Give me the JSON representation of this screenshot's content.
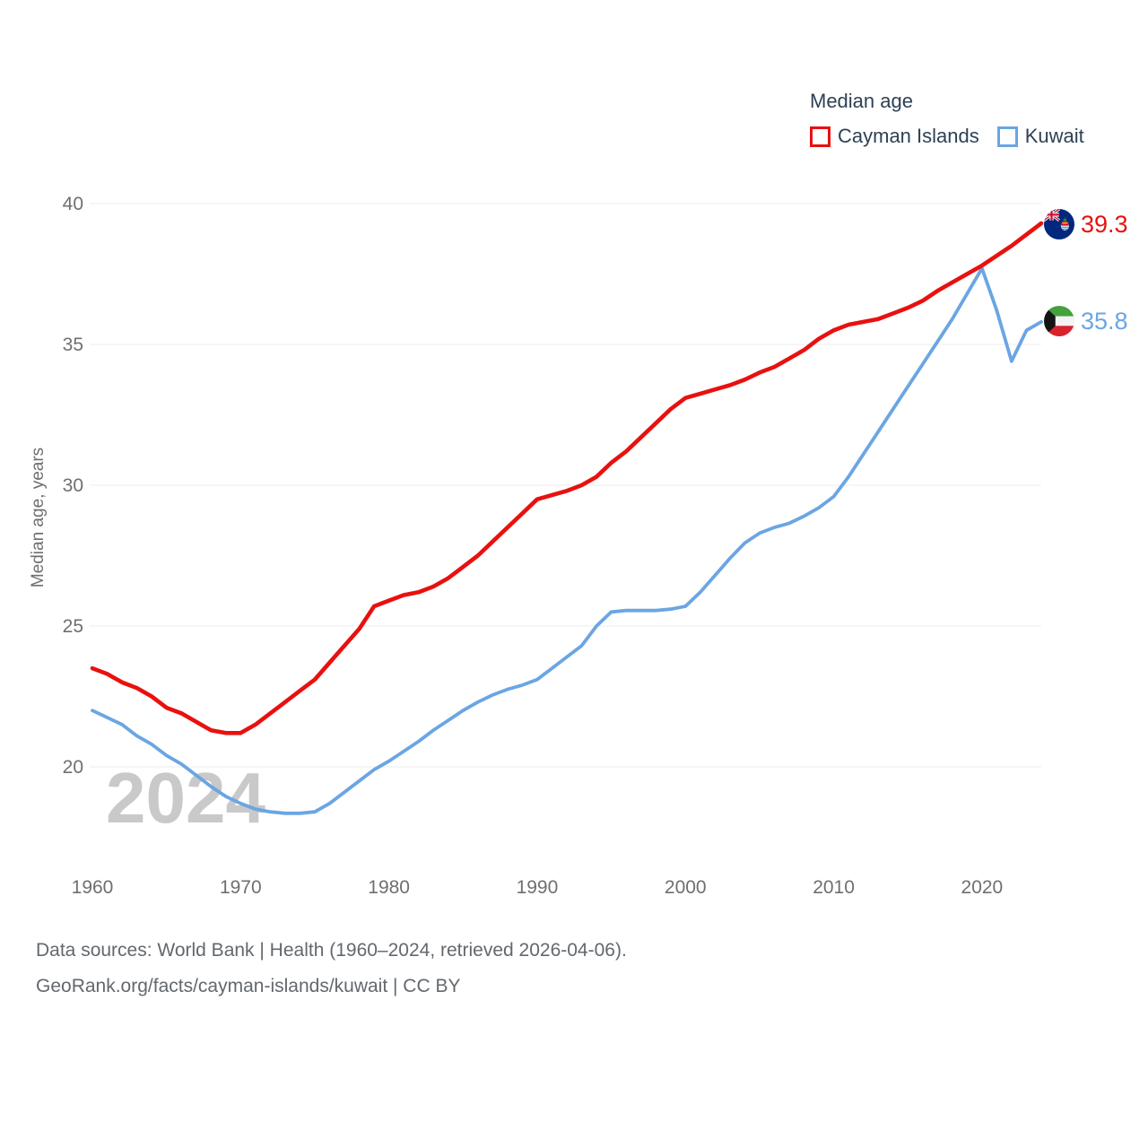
{
  "legend": {
    "title": "Median age"
  },
  "footer": {
    "line1": "Data sources: World Bank | Health (1960–2024, retrieved 2026-04-06).",
    "line2": "GeoRank.org/facts/cayman-islands/kuwait | CC BY"
  },
  "colors": {
    "background": "#ffffff",
    "legend_text": "#2e4154",
    "axis_text": "#6f6f6f",
    "footer_text": "#63686d",
    "gridline": "#ececec",
    "watermark": "#c9c9c9"
  },
  "chart_data": {
    "type": "line",
    "title": "Median age",
    "xlabel": "",
    "ylabel": "Median age, years",
    "watermark": "2024",
    "legend_position": "top-right",
    "grid": "horizontal-only",
    "x_range": [
      1960,
      2024
    ],
    "x_step": 1,
    "x_ticks": [
      1960,
      1970,
      1980,
      1990,
      2000,
      2010,
      2020
    ],
    "y_ticks": [
      20,
      25,
      30,
      35,
      40
    ],
    "ylim_drawn": [
      18.3,
      40
    ],
    "years": [
      1960,
      1961,
      1962,
      1963,
      1964,
      1965,
      1966,
      1967,
      1968,
      1969,
      1970,
      1971,
      1972,
      1973,
      1974,
      1975,
      1976,
      1977,
      1978,
      1979,
      1980,
      1981,
      1982,
      1983,
      1984,
      1985,
      1986,
      1987,
      1988,
      1989,
      1990,
      1991,
      1992,
      1993,
      1994,
      1995,
      1996,
      1997,
      1998,
      1999,
      2000,
      2001,
      2002,
      2003,
      2004,
      2005,
      2006,
      2007,
      2008,
      2009,
      2010,
      2011,
      2012,
      2013,
      2014,
      2015,
      2016,
      2017,
      2018,
      2019,
      2020,
      2021,
      2022,
      2023,
      2024
    ],
    "series": [
      {
        "name": "Cayman Islands",
        "color": "#e8110f",
        "end_label": "39.3",
        "flag": "cayman-islands",
        "values": [
          23.5,
          23.3,
          23.0,
          22.8,
          22.5,
          22.1,
          21.9,
          21.6,
          21.3,
          21.2,
          21.2,
          21.5,
          21.9,
          22.3,
          22.7,
          23.1,
          23.7,
          24.3,
          24.9,
          25.7,
          25.9,
          26.1,
          26.2,
          26.4,
          26.7,
          27.1,
          27.5,
          28.0,
          28.5,
          29.0,
          29.5,
          29.65,
          29.8,
          30.0,
          30.3,
          30.8,
          31.2,
          31.7,
          32.2,
          32.7,
          33.1,
          33.25,
          33.4,
          33.55,
          33.75,
          34.0,
          34.2,
          34.5,
          34.8,
          35.2,
          35.5,
          35.7,
          35.8,
          35.9,
          36.1,
          36.3,
          36.55,
          36.9,
          37.2,
          37.5,
          37.8,
          38.15,
          38.5,
          38.9,
          39.3
        ]
      },
      {
        "name": "Kuwait",
        "color": "#6ba5e3",
        "end_label": "35.8",
        "flag": "kuwait",
        "values": [
          22.0,
          21.75,
          21.5,
          21.1,
          20.8,
          20.4,
          20.1,
          19.7,
          19.3,
          18.95,
          18.7,
          18.5,
          18.4,
          18.35,
          18.35,
          18.4,
          18.7,
          19.1,
          19.5,
          19.9,
          20.2,
          20.55,
          20.9,
          21.3,
          21.65,
          22.0,
          22.3,
          22.55,
          22.75,
          22.9,
          23.1,
          23.5,
          23.9,
          24.3,
          25.0,
          25.5,
          25.55,
          25.55,
          25.55,
          25.6,
          25.7,
          26.2,
          26.8,
          27.4,
          27.95,
          28.3,
          28.5,
          28.65,
          28.9,
          29.2,
          29.6,
          30.3,
          31.1,
          31.9,
          32.7,
          33.5,
          34.3,
          35.1,
          35.9,
          36.8,
          37.7,
          36.2,
          34.4,
          35.5,
          35.8
        ]
      }
    ]
  }
}
